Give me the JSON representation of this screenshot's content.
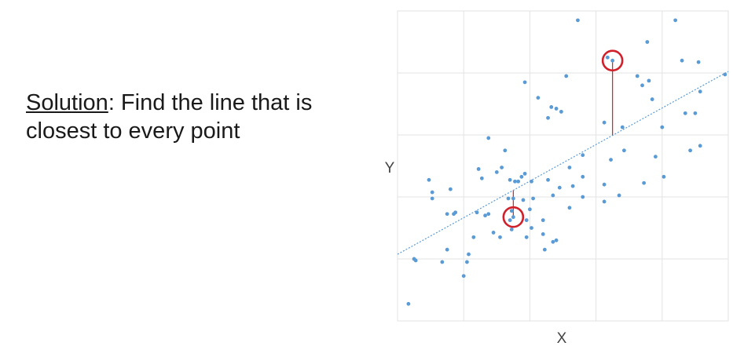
{
  "slide": {
    "keyword": "Solution",
    "line1_rest": ": Find the line that is",
    "line2": "closest to every point"
  },
  "chart_data": {
    "type": "scatter",
    "xlabel": "X",
    "ylabel": "Y",
    "xlim": [
      0,
      10
    ],
    "ylim": [
      0,
      10
    ],
    "grid": true,
    "colors": {
      "points": "#5b9bd5",
      "fit_line": "#5b9bd5",
      "residual": "#d0202a",
      "highlight": "#d0202a"
    },
    "fit_line": {
      "intercept": 2.15,
      "slope": 0.59
    },
    "points": [
      [
        0.33,
        0.55
      ],
      [
        0.5,
        2.0
      ],
      [
        0.55,
        1.95
      ],
      [
        0.95,
        4.55
      ],
      [
        1.05,
        4.15
      ],
      [
        1.05,
        3.95
      ],
      [
        1.35,
        1.9
      ],
      [
        1.5,
        3.45
      ],
      [
        1.5,
        2.3
      ],
      [
        1.6,
        4.25
      ],
      [
        1.7,
        3.45
      ],
      [
        1.75,
        3.5
      ],
      [
        2.0,
        1.45
      ],
      [
        2.1,
        1.9
      ],
      [
        2.15,
        2.15
      ],
      [
        2.3,
        2.7
      ],
      [
        2.4,
        3.5
      ],
      [
        2.45,
        4.9
      ],
      [
        2.55,
        4.6
      ],
      [
        2.65,
        3.4
      ],
      [
        2.75,
        3.45
      ],
      [
        2.75,
        5.9
      ],
      [
        2.9,
        2.85
      ],
      [
        3.0,
        4.8
      ],
      [
        3.1,
        2.7
      ],
      [
        3.15,
        4.95
      ],
      [
        3.25,
        5.5
      ],
      [
        3.35,
        3.95
      ],
      [
        3.4,
        4.55
      ],
      [
        3.4,
        3.25
      ],
      [
        3.45,
        3.55
      ],
      [
        3.45,
        2.95
      ],
      [
        3.5,
        3.95
      ],
      [
        3.55,
        4.5
      ],
      [
        3.65,
        4.5
      ],
      [
        3.75,
        4.65
      ],
      [
        3.8,
        3.9
      ],
      [
        3.85,
        4.75
      ],
      [
        3.85,
        7.7
      ],
      [
        3.9,
        3.25
      ],
      [
        3.9,
        2.7
      ],
      [
        4.0,
        3.6
      ],
      [
        4.05,
        4.5
      ],
      [
        4.05,
        3.0
      ],
      [
        4.1,
        3.95
      ],
      [
        4.25,
        7.2
      ],
      [
        4.4,
        2.8
      ],
      [
        4.4,
        3.25
      ],
      [
        4.45,
        2.3
      ],
      [
        4.55,
        6.55
      ],
      [
        4.55,
        4.55
      ],
      [
        4.65,
        6.9
      ],
      [
        4.7,
        4.05
      ],
      [
        4.7,
        2.55
      ],
      [
        4.8,
        6.85
      ],
      [
        4.8,
        2.6
      ],
      [
        4.9,
        4.3
      ],
      [
        4.95,
        6.75
      ],
      [
        5.1,
        7.9
      ],
      [
        5.2,
        4.95
      ],
      [
        5.2,
        3.65
      ],
      [
        5.3,
        4.35
      ],
      [
        5.45,
        9.7
      ],
      [
        5.6,
        4.0
      ],
      [
        5.6,
        5.35
      ],
      [
        5.6,
        4.65
      ],
      [
        6.25,
        3.85
      ],
      [
        6.25,
        4.4
      ],
      [
        6.25,
        6.4
      ],
      [
        6.35,
        8.5
      ],
      [
        6.45,
        5.2
      ],
      [
        6.7,
        4.05
      ],
      [
        6.8,
        6.25
      ],
      [
        6.85,
        5.5
      ],
      [
        7.25,
        7.9
      ],
      [
        7.4,
        7.6
      ],
      [
        7.45,
        4.45
      ],
      [
        7.55,
        9.0
      ],
      [
        7.6,
        7.75
      ],
      [
        7.7,
        7.15
      ],
      [
        7.8,
        5.3
      ],
      [
        8.0,
        6.25
      ],
      [
        8.05,
        4.65
      ],
      [
        8.4,
        9.7
      ],
      [
        8.6,
        8.4
      ],
      [
        8.7,
        6.7
      ],
      [
        8.85,
        5.5
      ],
      [
        9.0,
        6.7
      ],
      [
        9.1,
        8.35
      ],
      [
        9.15,
        5.65
      ],
      [
        9.15,
        7.4
      ],
      [
        9.9,
        7.95
      ]
    ],
    "highlighted_points": [
      [
        3.5,
        3.35
      ],
      [
        6.5,
        8.4
      ]
    ]
  }
}
